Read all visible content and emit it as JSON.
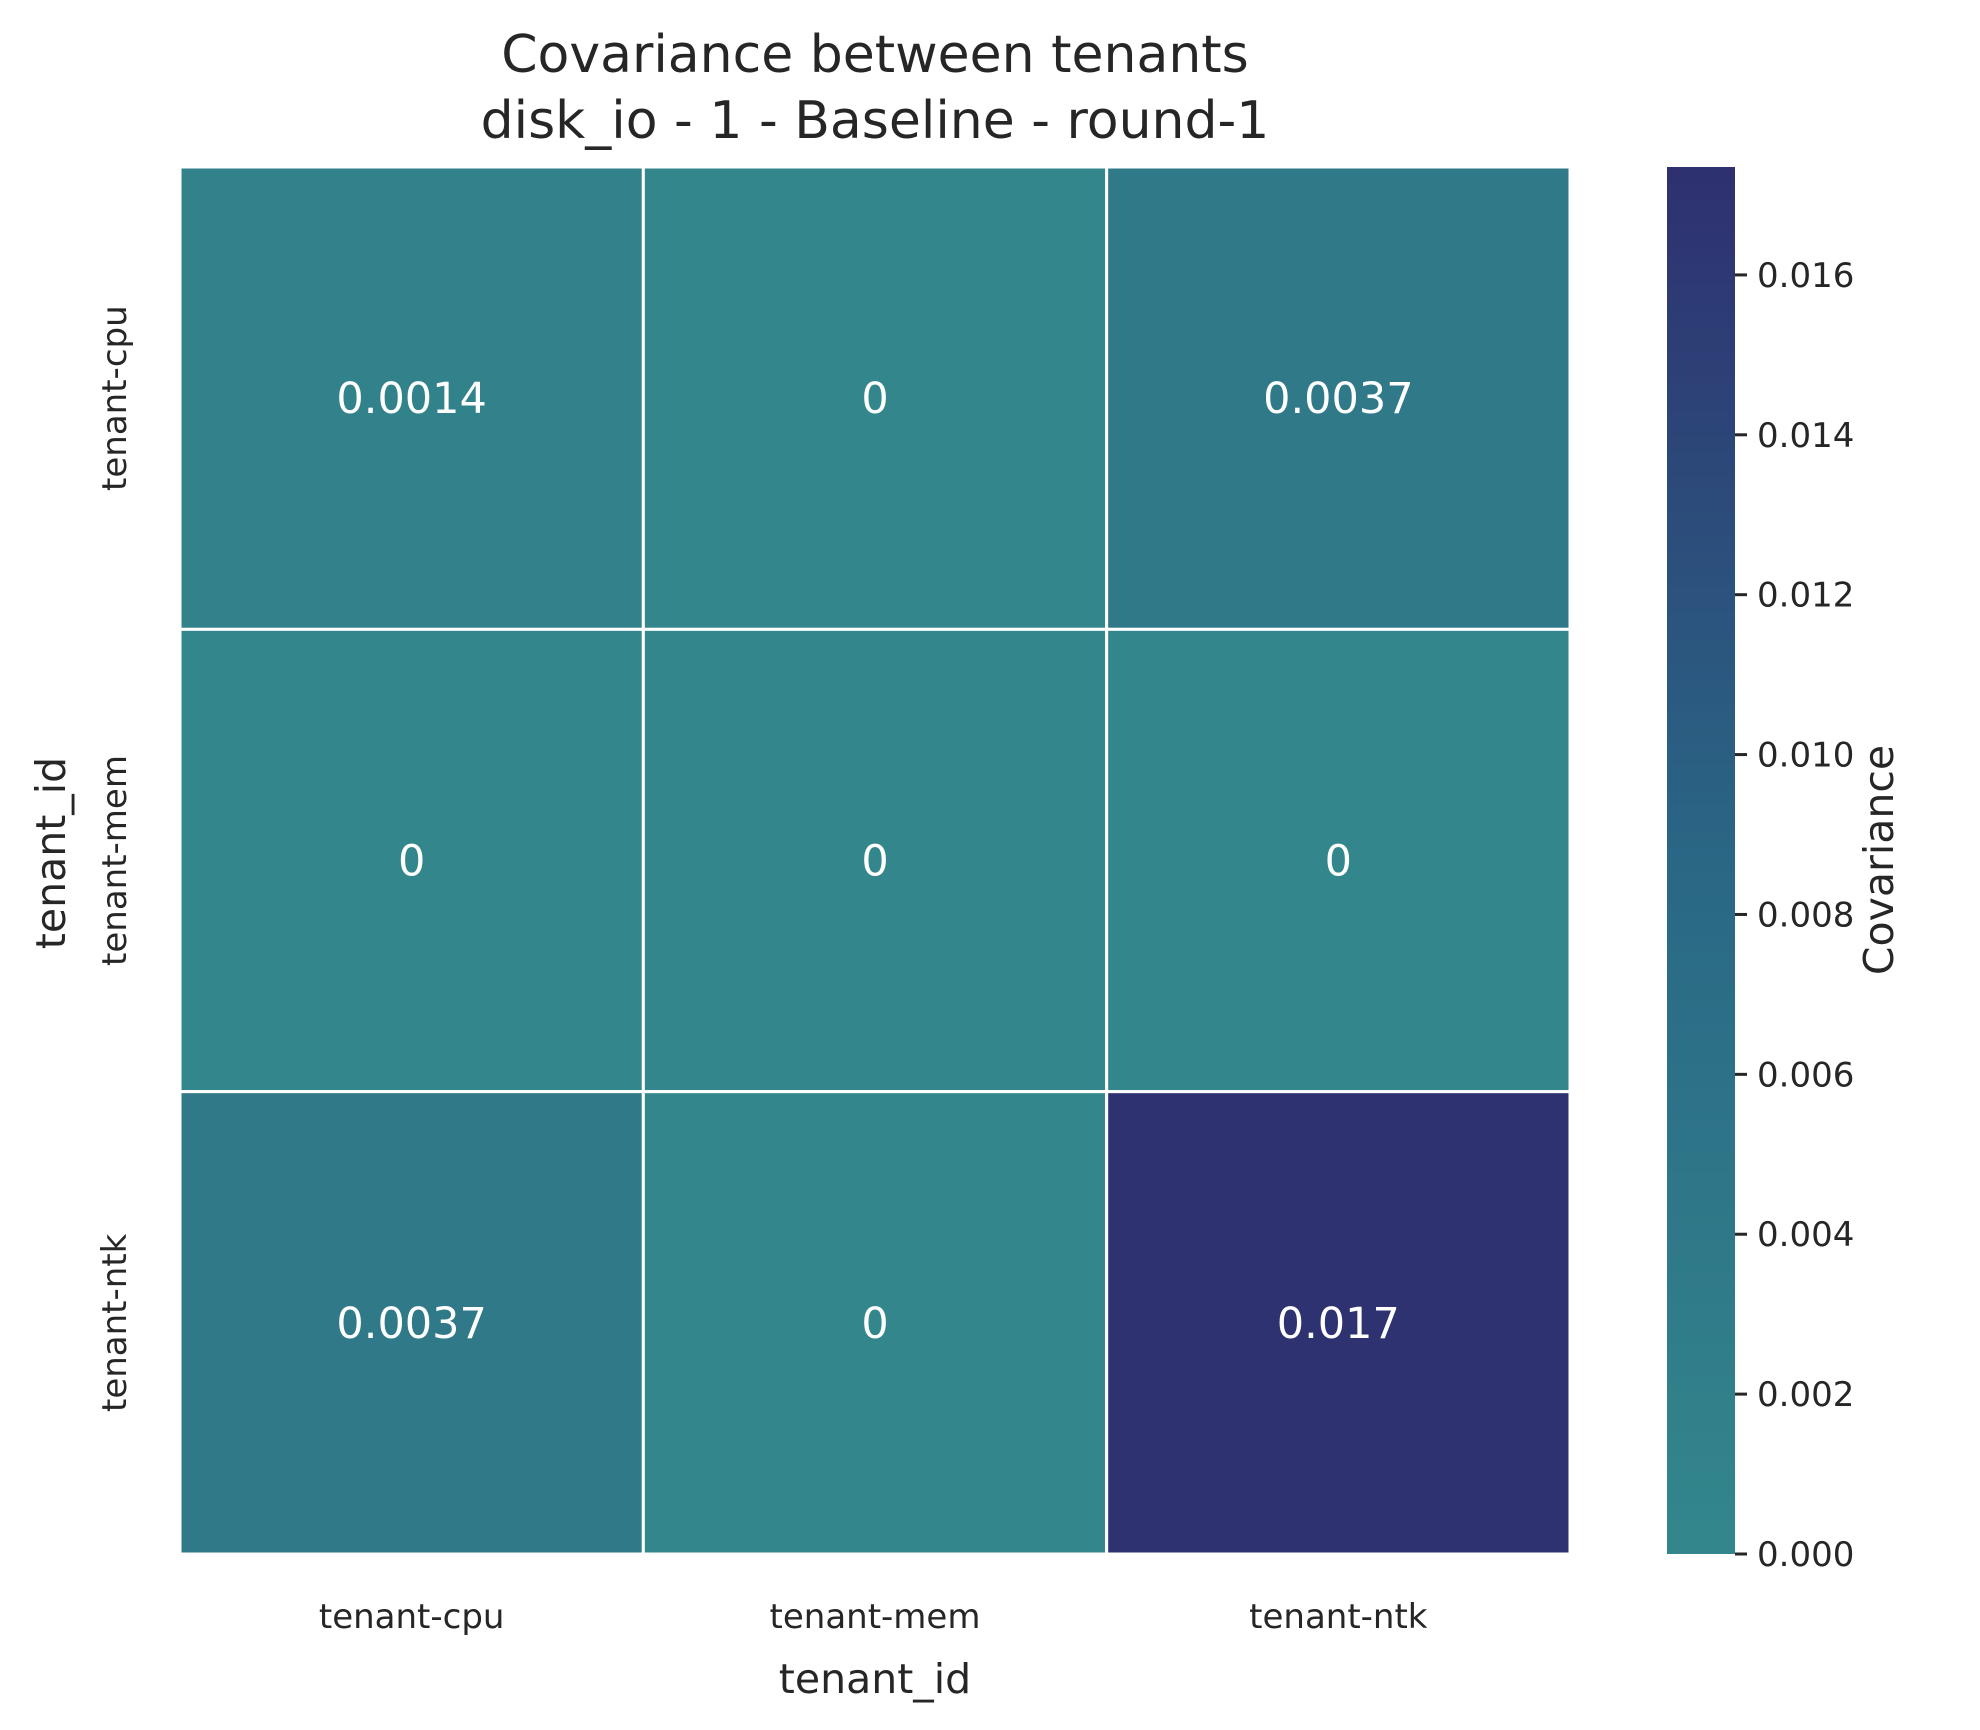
{
  "chart_data": {
    "type": "heatmap",
    "title": "Covariance between tenants",
    "subtitle": "disk_io - 1 - Baseline - round-1",
    "xlabel": "tenant_id",
    "ylabel": "tenant_id",
    "x_categories": [
      "tenant-cpu",
      "tenant-mem",
      "tenant-ntk"
    ],
    "y_categories": [
      "tenant-cpu",
      "tenant-mem",
      "tenant-ntk"
    ],
    "values": [
      [
        0.0014,
        0,
        0.0037
      ],
      [
        0,
        0,
        0
      ],
      [
        0.0037,
        0,
        0.017
      ]
    ],
    "cell_labels": [
      [
        "0.0014",
        "0",
        "0.0037"
      ],
      [
        "0",
        "0",
        "0"
      ],
      [
        "0.0037",
        "0",
        "0.017"
      ]
    ],
    "colorbar": {
      "label": "Covariance",
      "range": [
        0,
        0.01735
      ],
      "ticks": [
        0.0,
        0.002,
        0.004,
        0.006,
        0.008,
        0.01,
        0.012,
        0.014,
        0.016
      ],
      "tick_labels": [
        "0.000",
        "0.002",
        "0.004",
        "0.006",
        "0.008",
        "0.010",
        "0.012",
        "0.014",
        "0.016"
      ],
      "colors": [
        "#33878c",
        "#2a6785",
        "#2e3070"
      ]
    },
    "grid_line_color": "#ffffff"
  }
}
